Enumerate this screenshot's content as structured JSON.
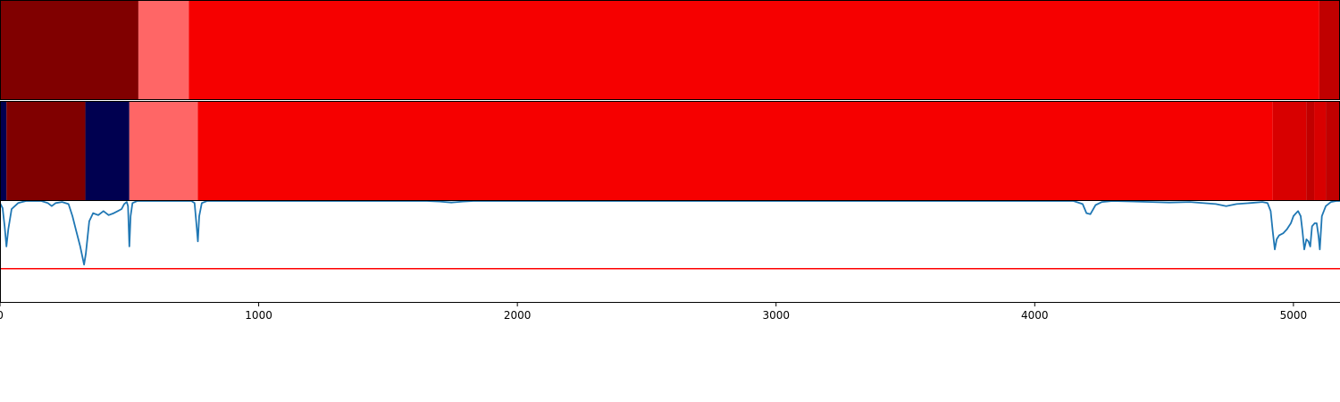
{
  "chart_data": {
    "type": "area",
    "x_range": [
      0,
      5180
    ],
    "x_ticks": [
      0,
      1000,
      2000,
      3000,
      4000,
      5000
    ],
    "x_tick_labels": [
      "0",
      "1000",
      "2000",
      "3000",
      "4000",
      "5000"
    ],
    "y_range": [
      0,
      1
    ],
    "grid": false,
    "tracks": [
      {
        "segments": [
          {
            "start": 0,
            "end": 535,
            "color": "#800000"
          },
          {
            "start": 535,
            "end": 730,
            "color": "#ff6666"
          },
          {
            "start": 730,
            "end": 5100,
            "color": "#f60000"
          },
          {
            "start": 5100,
            "end": 5180,
            "color": "#c00000"
          }
        ]
      },
      {
        "segments": [
          {
            "start": 0,
            "end": 25,
            "color": "#000050"
          },
          {
            "start": 25,
            "end": 330,
            "color": "#800000"
          },
          {
            "start": 330,
            "end": 500,
            "color": "#000050"
          },
          {
            "start": 500,
            "end": 765,
            "color": "#ff6666"
          },
          {
            "start": 765,
            "end": 4920,
            "color": "#f60000"
          },
          {
            "start": 4920,
            "end": 5050,
            "color": "#d80000"
          },
          {
            "start": 5050,
            "end": 5080,
            "color": "#c00000"
          },
          {
            "start": 5080,
            "end": 5125,
            "color": "#d80000"
          },
          {
            "start": 5125,
            "end": 5180,
            "color": "#c00000"
          }
        ]
      }
    ],
    "series": [
      {
        "color": "#1f77b4",
        "points": [
          [
            0,
            0.98
          ],
          [
            10,
            0.93
          ],
          [
            18,
            0.75
          ],
          [
            25,
            0.55
          ],
          [
            32,
            0.72
          ],
          [
            45,
            0.92
          ],
          [
            70,
            0.98
          ],
          [
            100,
            1.0
          ],
          [
            160,
            1.0
          ],
          [
            185,
            0.98
          ],
          [
            200,
            0.95
          ],
          [
            215,
            0.98
          ],
          [
            240,
            0.99
          ],
          [
            265,
            0.97
          ],
          [
            280,
            0.85
          ],
          [
            295,
            0.7
          ],
          [
            310,
            0.55
          ],
          [
            325,
            0.37
          ],
          [
            332,
            0.48
          ],
          [
            345,
            0.8
          ],
          [
            360,
            0.88
          ],
          [
            380,
            0.86
          ],
          [
            400,
            0.9
          ],
          [
            420,
            0.86
          ],
          [
            440,
            0.88
          ],
          [
            455,
            0.9
          ],
          [
            470,
            0.92
          ],
          [
            480,
            0.97
          ],
          [
            490,
            0.99
          ],
          [
            495,
            0.95
          ],
          [
            500,
            0.55
          ],
          [
            505,
            0.85
          ],
          [
            512,
            0.98
          ],
          [
            530,
            1.0
          ],
          [
            740,
            1.0
          ],
          [
            752,
            0.98
          ],
          [
            760,
            0.75
          ],
          [
            765,
            0.6
          ],
          [
            770,
            0.85
          ],
          [
            780,
            0.98
          ],
          [
            800,
            1.0
          ],
          [
            1650,
            1.0
          ],
          [
            1700,
            0.995
          ],
          [
            1745,
            0.985
          ],
          [
            1790,
            0.995
          ],
          [
            1830,
            1.0
          ],
          [
            4150,
            1.0
          ],
          [
            4185,
            0.97
          ],
          [
            4200,
            0.88
          ],
          [
            4215,
            0.87
          ],
          [
            4235,
            0.96
          ],
          [
            4260,
            0.99
          ],
          [
            4300,
            1.0
          ],
          [
            4450,
            0.99
          ],
          [
            4520,
            0.985
          ],
          [
            4600,
            0.99
          ],
          [
            4700,
            0.97
          ],
          [
            4740,
            0.95
          ],
          [
            4780,
            0.97
          ],
          [
            4830,
            0.98
          ],
          [
            4880,
            0.99
          ],
          [
            4900,
            0.98
          ],
          [
            4912,
            0.9
          ],
          [
            4920,
            0.7
          ],
          [
            4928,
            0.52
          ],
          [
            4935,
            0.62
          ],
          [
            4945,
            0.66
          ],
          [
            4960,
            0.68
          ],
          [
            4975,
            0.72
          ],
          [
            4990,
            0.78
          ],
          [
            5000,
            0.85
          ],
          [
            5010,
            0.88
          ],
          [
            5018,
            0.9
          ],
          [
            5028,
            0.85
          ],
          [
            5035,
            0.7
          ],
          [
            5042,
            0.52
          ],
          [
            5050,
            0.62
          ],
          [
            5058,
            0.6
          ],
          [
            5065,
            0.55
          ],
          [
            5072,
            0.75
          ],
          [
            5082,
            0.78
          ],
          [
            5090,
            0.78
          ],
          [
            5097,
            0.65
          ],
          [
            5102,
            0.52
          ],
          [
            5110,
            0.85
          ],
          [
            5125,
            0.95
          ],
          [
            5145,
            0.99
          ],
          [
            5165,
            1.0
          ],
          [
            5180,
            1.0
          ]
        ]
      }
    ],
    "threshold": {
      "y": 0.33,
      "color": "#ff0000"
    }
  }
}
